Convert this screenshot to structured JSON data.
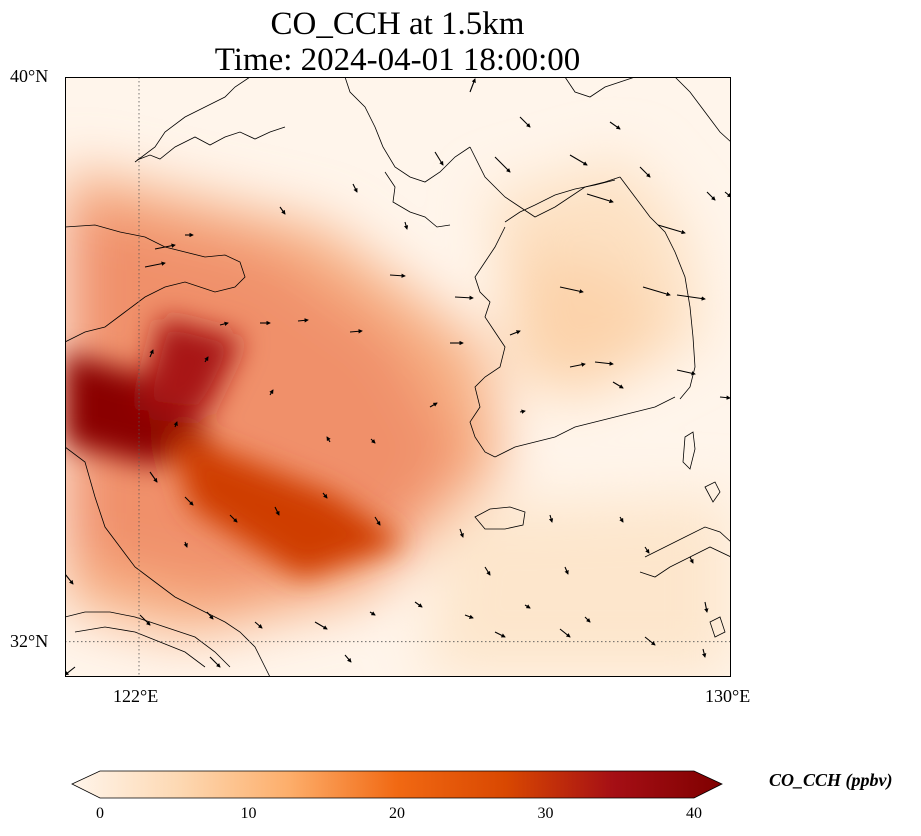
{
  "title_line1": "CO_CCH at 1.5km",
  "title_line2": "Time: 2024-04-01 18:00:00",
  "map": {
    "lon_range": [
      121,
      130
    ],
    "lat_range": [
      31.5,
      40
    ],
    "lat_labels": [
      {
        "lat": 40,
        "text": "40°N"
      },
      {
        "lat": 32,
        "text": "32°N"
      }
    ],
    "lon_labels": [
      {
        "lon": 122,
        "text": "122°E"
      },
      {
        "lon": 130,
        "text": "130°E"
      }
    ],
    "gridlines": {
      "lon": 122,
      "lat": 32
    },
    "background_color": "#fff5eb",
    "plume": [
      {
        "name": "west-core",
        "points": [
          [
            121.0,
            36.1
          ],
          [
            122.3,
            35.7
          ],
          [
            123.0,
            34.8
          ],
          [
            122.2,
            34.5
          ],
          [
            121.0,
            34.8
          ]
        ],
        "level": 38
      },
      {
        "name": "north-arm",
        "points": [
          [
            122.3,
            36.6
          ],
          [
            123.4,
            36.3
          ],
          [
            122.9,
            35.2
          ],
          [
            122.0,
            35.3
          ]
        ],
        "level": 33
      },
      {
        "name": "east-arm",
        "points": [
          [
            122.4,
            35.0
          ],
          [
            124.6,
            34.1
          ],
          [
            125.6,
            33.4
          ],
          [
            124.2,
            32.9
          ],
          [
            122.7,
            33.9
          ]
        ],
        "level": 28
      }
    ],
    "colorbar": {
      "min": 0,
      "max": 40,
      "ticks": [
        0,
        10,
        20,
        30,
        40
      ],
      "label": "CO_CCH (ppbv)",
      "stops": [
        "#fff5eb",
        "#fdd8b2",
        "#fdae6b",
        "#f16913",
        "#d94801",
        "#a50f15",
        "#7f0000"
      ]
    },
    "wind_vectors_desc": "wind arrows"
  }
}
